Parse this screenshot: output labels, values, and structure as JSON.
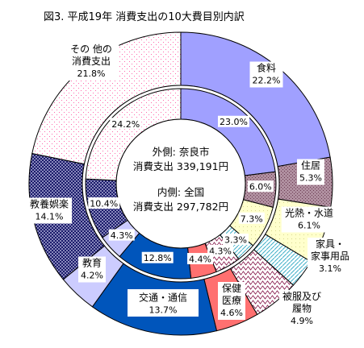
{
  "chart_data": {
    "type": "donut",
    "title": "図3. 平成19年 消費支出の10大費目別内訳",
    "center": {
      "outer_line1": "外側: 奈良市",
      "outer_line2": "消費支出 339,191円",
      "inner_line1": "内側: 全国",
      "inner_line2": "消費支出 297,782円"
    },
    "categories": [
      {
        "key": "food",
        "label_lines": [
          "食料"
        ],
        "outer": 22.2,
        "inner": 23.0,
        "outer_label": "22.2%",
        "inner_label": "23.0%",
        "color": "#a0a0ff"
      },
      {
        "key": "housing",
        "label_lines": [
          "住居"
        ],
        "outer": 5.3,
        "inner": 6.0,
        "outer_label": "5.3%",
        "inner_label": "6.0%",
        "color": "#a08090"
      },
      {
        "key": "utilities",
        "label_lines": [
          "光熱・水道"
        ],
        "outer": 6.1,
        "inner": 7.3,
        "outer_label": "6.1%",
        "inner_label": "7.3%",
        "color": "#ffffc8"
      },
      {
        "key": "furniture",
        "label_lines": [
          "家具・",
          "家事用品"
        ],
        "outer": 3.1,
        "inner": 3.3,
        "outer_label": "3.1%",
        "inner_label": "3.3%",
        "color": "#cceeff"
      },
      {
        "key": "clothing",
        "label_lines": [
          "被服及び",
          "履物"
        ],
        "outer": 4.9,
        "inner": 4.3,
        "outer_label": "4.9%",
        "inner_label": "4.3%",
        "color": "#ffffff"
      },
      {
        "key": "medical",
        "label_lines": [
          "保健",
          "医療"
        ],
        "outer": 4.6,
        "inner": 4.4,
        "outer_label": "4.6%",
        "inner_label": "4.4%",
        "color": "#ff7070"
      },
      {
        "key": "transport",
        "label_lines": [
          "交通・通信"
        ],
        "outer": 13.7,
        "inner": 12.8,
        "outer_label": "13.7%",
        "inner_label": "12.8%",
        "color": "#0055bb"
      },
      {
        "key": "education",
        "label_lines": [
          "教育"
        ],
        "outer": 4.2,
        "inner": 4.3,
        "outer_label": "4.2%",
        "inner_label": "4.3%",
        "color": "#ccccff"
      },
      {
        "key": "recreation",
        "label_lines": [
          "教養娯楽"
        ],
        "outer": 14.1,
        "inner": 10.4,
        "outer_label": "14.1%",
        "inner_label": "10.4%",
        "color": "#000066"
      },
      {
        "key": "other",
        "label_lines": [
          "その 他の",
          "消費支出"
        ],
        "outer": 21.8,
        "inner": 24.2,
        "outer_label": "21.8%",
        "inner_label": "24.2%",
        "color": "#ffffff"
      }
    ]
  }
}
